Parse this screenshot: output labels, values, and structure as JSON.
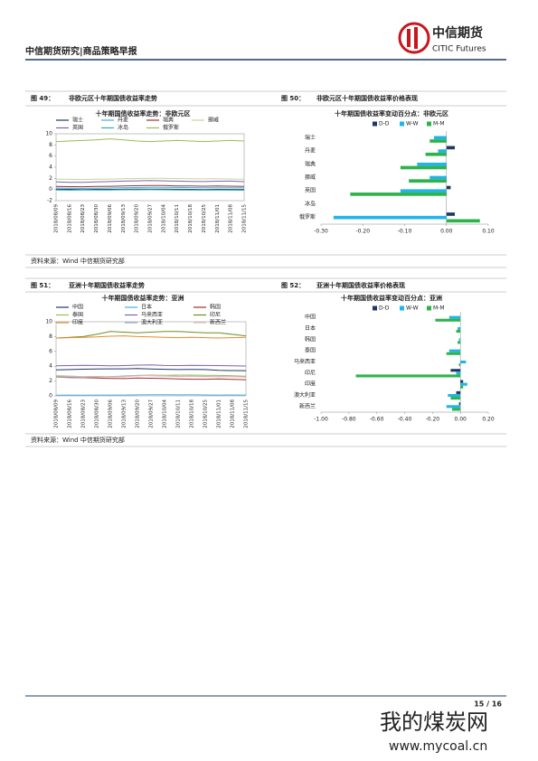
{
  "header": {
    "title": "中信期货研究|商品策略早报",
    "logo_cn": "中信期货",
    "logo_en": "CITIC Futures"
  },
  "figures": [
    {
      "number": "图 49：",
      "caption": "非欧元区十年期国债收益率走势"
    },
    {
      "number": "图 50：",
      "caption": "非欧元区十年期国债收益率价格表现"
    },
    {
      "number": "图 51：",
      "caption": "亚洲十年期国债收益率走势"
    },
    {
      "number": "图 52：",
      "caption": "亚洲十年期国债收益率价格表现"
    }
  ],
  "sources": [
    "资料来源：Wind 中信期货研究部",
    "资料来源：Wind 中信期货研究部"
  ],
  "chart_data": [
    {
      "type": "line",
      "title": "十年期国债收益率走势：非欧元区",
      "categories": [
        "2018/08/09",
        "2018/08/16",
        "2018/08/23",
        "2018/08/30",
        "2018/09/06",
        "2018/09/13",
        "2018/09/20",
        "2018/09/27",
        "2018/10/04",
        "2018/10/11",
        "2018/10/18",
        "2018/10/25",
        "2018/11/01",
        "2018/11/08",
        "2018/11/15"
      ],
      "ylim": [
        -2,
        10
      ],
      "yticks": [
        -2,
        0,
        2,
        4,
        6,
        8,
        10
      ],
      "series": [
        {
          "name": "瑞士",
          "color": "#1f3864",
          "values": [
            0.05,
            0.02,
            0.0,
            0.03,
            0.02,
            0.05,
            0.08,
            0.07,
            0.06,
            0.04,
            0.02,
            0.0,
            0.02,
            0.01,
            -0.02
          ]
        },
        {
          "name": "丹麦",
          "color": "#40b0e0",
          "values": [
            0.25,
            0.22,
            0.2,
            0.24,
            0.27,
            0.3,
            0.35,
            0.38,
            0.4,
            0.37,
            0.33,
            0.3,
            0.32,
            0.3,
            0.28
          ]
        },
        {
          "name": "瑞典",
          "color": "#a0302c",
          "values": [
            0.55,
            0.52,
            0.5,
            0.55,
            0.58,
            0.62,
            0.68,
            0.72,
            0.7,
            0.65,
            0.62,
            0.6,
            0.62,
            0.6,
            0.55
          ]
        },
        {
          "name": "挪威",
          "color": "#c3d69b",
          "values": [
            1.85,
            1.82,
            1.8,
            1.85,
            1.88,
            1.92,
            1.98,
            2.02,
            2.0,
            1.95,
            1.92,
            1.9,
            1.92,
            1.88,
            1.85
          ]
        },
        {
          "name": "英国",
          "color": "#7f63a8",
          "values": [
            1.35,
            1.3,
            1.28,
            1.38,
            1.42,
            1.5,
            1.55,
            1.62,
            1.55,
            1.5,
            1.45,
            1.42,
            1.48,
            1.5,
            1.4
          ]
        },
        {
          "name": "冰岛",
          "color": "#31b0b0",
          "values": [
            -0.1,
            -0.12,
            -0.1,
            -0.08,
            -0.1,
            -0.06,
            -0.05,
            -0.04,
            -0.06,
            -0.08,
            -0.1,
            -0.12,
            -0.1,
            -0.12,
            -0.14
          ]
        },
        {
          "name": "俄罗斯",
          "color": "#9bbb59",
          "values": [
            8.6,
            8.7,
            8.8,
            8.9,
            9.1,
            8.9,
            8.7,
            8.6,
            8.7,
            8.8,
            8.7,
            8.6,
            8.7,
            8.8,
            8.7
          ]
        }
      ]
    },
    {
      "type": "hbar",
      "title": "十年期国债收益率变动百分点：非欧元区",
      "categories": [
        "瑞士",
        "丹麦",
        "瑞典",
        "挪威",
        "英国",
        "冰岛",
        "俄罗斯"
      ],
      "xlim": [
        -0.3,
        0.1
      ],
      "xticks": [
        {
          "value": -0.3,
          "label": "-0.30"
        },
        {
          "value": -0.2,
          "label": "-0.20"
        },
        {
          "value": -0.1,
          "label": "-0.10"
        },
        {
          "value": 0,
          "label": "0.00"
        },
        {
          "value": 0.1,
          "label": "0.10"
        }
      ],
      "series": [
        {
          "name": "D-D",
          "color": "#1f3864",
          "values": [
            0,
            0.02,
            0,
            0,
            0.01,
            0,
            0.02
          ]
        },
        {
          "name": "W-W",
          "color": "#1fb5e8",
          "values": [
            -0.03,
            -0.02,
            -0.07,
            -0.04,
            -0.11,
            0,
            -0.27
          ]
        },
        {
          "name": "M-M",
          "color": "#2db34a",
          "values": [
            -0.04,
            -0.05,
            -0.11,
            -0.09,
            -0.23,
            0,
            0.08
          ]
        }
      ]
    },
    {
      "type": "line",
      "title": "十年期国债收益率走势：亚洲",
      "categories": [
        "2018/08/09",
        "2018/08/16",
        "2018/08/23",
        "2018/08/30",
        "2018/09/06",
        "2018/09/13",
        "2018/09/20",
        "2018/09/27",
        "2018/10/04",
        "2018/10/11",
        "2018/10/18",
        "2018/10/25",
        "2018/11/01",
        "2018/11/08",
        "2018/11/15"
      ],
      "ylim": [
        0,
        10
      ],
      "yticks": [
        0,
        2,
        4,
        6,
        8,
        10
      ],
      "series": [
        {
          "name": "中国",
          "color": "#1f3864",
          "values": [
            3.5,
            3.55,
            3.6,
            3.62,
            3.65,
            3.65,
            3.68,
            3.62,
            3.58,
            3.55,
            3.56,
            3.55,
            3.45,
            3.42,
            3.4
          ]
        },
        {
          "name": "日本",
          "color": "#40b0e0",
          "values": [
            0.1,
            0.11,
            0.1,
            0.11,
            0.11,
            0.11,
            0.13,
            0.15,
            0.15,
            0.14,
            0.15,
            0.12,
            0.11,
            0.12,
            0.11
          ]
        },
        {
          "name": "韩国",
          "color": "#a0302c",
          "values": [
            2.55,
            2.48,
            2.45,
            2.4,
            2.35,
            2.33,
            2.4,
            2.38,
            2.35,
            2.28,
            2.25,
            2.25,
            2.28,
            2.22,
            2.18
          ]
        },
        {
          "name": "泰国",
          "color": "#9bbb59",
          "values": [
            2.7,
            2.65,
            2.6,
            2.62,
            2.58,
            2.6,
            2.75,
            2.8,
            2.78,
            2.8,
            2.8,
            2.78,
            2.75,
            2.72,
            2.65
          ]
        },
        {
          "name": "马来西亚",
          "color": "#7f63a8",
          "values": [
            4.05,
            4.08,
            4.12,
            4.1,
            4.05,
            4.08,
            4.15,
            4.18,
            4.1,
            4.08,
            4.12,
            4.1,
            4.08,
            4.05,
            4.02
          ]
        },
        {
          "name": "印尼",
          "color": "#6b8e23",
          "values": [
            7.8,
            7.9,
            8.0,
            8.3,
            8.7,
            8.6,
            8.5,
            8.6,
            8.7,
            8.7,
            8.6,
            8.5,
            8.5,
            8.3,
            8.1
          ]
        },
        {
          "name": "印度",
          "color": "#e58a2b",
          "values": [
            7.8,
            7.85,
            7.9,
            7.95,
            8.05,
            8.1,
            8.0,
            7.95,
            7.9,
            7.85,
            7.9,
            7.85,
            7.8,
            7.85,
            7.9
          ]
        },
        {
          "name": "澳大利亚",
          "color": "#8ea9c1",
          "values": [
            2.55,
            2.52,
            2.5,
            2.55,
            2.6,
            2.68,
            2.75,
            2.72,
            2.68,
            2.62,
            2.65,
            2.62,
            2.6,
            2.58,
            2.55
          ]
        },
        {
          "name": "新西兰",
          "color": "#e6b8b7",
          "values": [
            2.75,
            2.68,
            2.6,
            2.58,
            2.55,
            2.6,
            2.7,
            2.75,
            2.72,
            2.65,
            2.62,
            2.6,
            2.62,
            2.58,
            2.52
          ]
        }
      ]
    },
    {
      "type": "hbar",
      "title": "十年期国债收益率变动百分点：亚洲",
      "categories": [
        "中国",
        "日本",
        "韩国",
        "泰国",
        "马来西亚",
        "印尼",
        "印度",
        "澳大利亚",
        "新西兰"
      ],
      "xlim": [
        -1.0,
        0.2
      ],
      "xticks": [
        {
          "value": -1.0,
          "label": "-1.00"
        },
        {
          "value": -0.8,
          "label": "-0.80"
        },
        {
          "value": -0.6,
          "label": "-0.60"
        },
        {
          "value": -0.4,
          "label": "-0.40"
        },
        {
          "value": -0.2,
          "label": "-0.20"
        },
        {
          "value": 0,
          "label": "0.00"
        },
        {
          "value": 0.2,
          "label": "0.20"
        }
      ],
      "series": [
        {
          "name": "D-D",
          "color": "#1f3864",
          "values": [
            0,
            0,
            0,
            0,
            0,
            -0.07,
            0.02,
            -0.03,
            -0.01
          ]
        },
        {
          "name": "W-W",
          "color": "#1fb5e8",
          "values": [
            -0.08,
            -0.02,
            -0.01,
            -0.08,
            0.04,
            -0.03,
            0.05,
            -0.09,
            -0.1
          ]
        },
        {
          "name": "M-M",
          "color": "#2db34a",
          "values": [
            -0.18,
            -0.03,
            -0.02,
            -0.1,
            -0.01,
            -0.75,
            0.02,
            -0.07,
            -0.06
          ]
        }
      ]
    }
  ],
  "footer": {
    "page": "15 / 16"
  },
  "watermark": {
    "name": "我的煤炭网",
    "url": "www.mycoal.cn"
  }
}
